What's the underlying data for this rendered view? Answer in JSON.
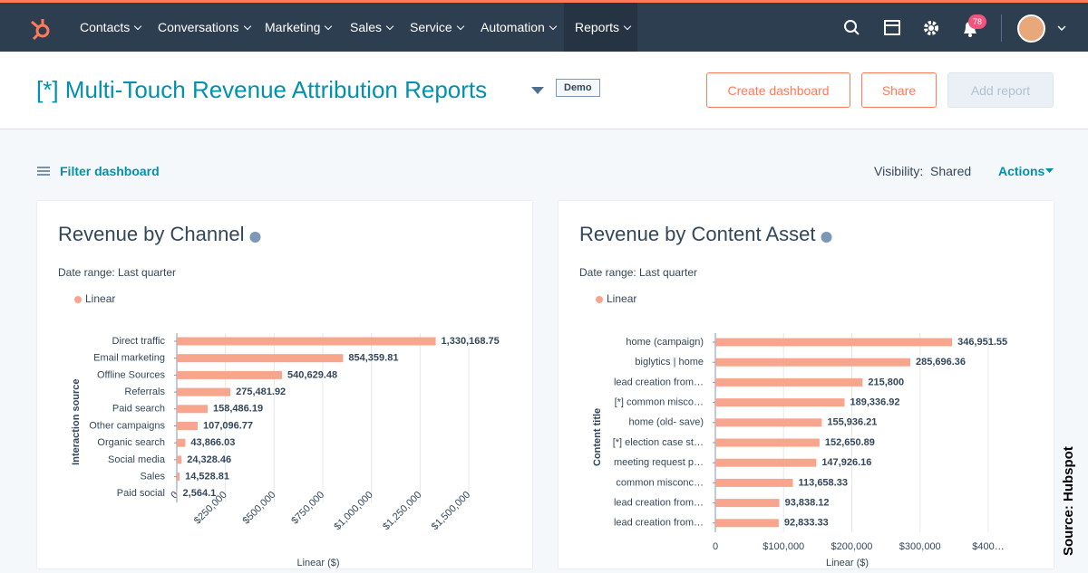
{
  "nav": {
    "items": [
      "Contacts",
      "Conversations",
      "Marketing",
      "Sales",
      "Service",
      "Automation",
      "Reports"
    ],
    "notifications": "78"
  },
  "header": {
    "title": "[*] Multi-Touch Revenue Attribution Reports",
    "badge": "Demo",
    "buttons": [
      "Create dashboard",
      "Share",
      "Add report"
    ]
  },
  "toolbar": {
    "filter": "Filter dashboard",
    "visibility_label": "Visibility:",
    "visibility": "Shared",
    "actions": "Actions"
  },
  "source": "Source: Hubspot",
  "chart_data": [
    {
      "type": "bar",
      "orientation": "horizontal",
      "title": "Revenue by Channel",
      "date_range_label": "Date range:",
      "date_range": "Last quarter",
      "x_label": "Linear ($)",
      "y_label": "Interaction source",
      "tick_rotation": -45,
      "categories": [
        "Direct traffic",
        "Email marketing",
        "Offline Sources",
        "Referrals",
        "Paid search",
        "Other campaigns",
        "Organic search",
        "Social media",
        "Sales",
        "Paid social"
      ],
      "series": [
        {
          "name": "Linear",
          "color": "#f8a58e",
          "values": [
            1330168.75,
            854359.81,
            540629.48,
            275481.92,
            158486.19,
            107096.77,
            43866.03,
            24328.46,
            14528.81,
            2564.1
          ],
          "value_labels": [
            "1,330,168.75",
            "854,359.81",
            "540,629.48",
            "275,481.92",
            "158,486.19",
            "107,096.77",
            "43,866.03",
            "24,328.46",
            "14,528.81",
            "2,564.1"
          ]
        }
      ],
      "xlim": [
        0,
        1500000
      ],
      "xticks": [
        0,
        {
          "value": 250000,
          "label": "$250,000"
        },
        {
          "value": 500000,
          "label": "$500,000"
        },
        {
          "value": 750000,
          "label": "$750,000"
        },
        {
          "value": 1000000,
          "label": "$1,000,000"
        },
        {
          "value": 1250000,
          "label": "$1,250,000"
        },
        {
          "value": 1500000,
          "label": "$1,500,000"
        }
      ],
      "grid": true
    },
    {
      "type": "bar",
      "orientation": "horizontal",
      "title": "Revenue by Content Asset",
      "date_range_label": "Date range:",
      "date_range": "Last quarter",
      "x_label": "Linear ($)",
      "y_label": "Content title",
      "tick_rotation": 0,
      "categories": [
        "home (campaign)",
        "biglytics | home",
        "lead creation from…",
        "[*] common misco…",
        "home (old- save)",
        "[*] election case st…",
        "meeting request p…",
        "common misconc…",
        "lead creation from…",
        "lead creation from…"
      ],
      "series": [
        {
          "name": "Linear",
          "color": "#f8a58e",
          "values": [
            346951.55,
            285696.36,
            215800,
            189336.92,
            155936.21,
            152650.89,
            147926.16,
            113658.33,
            93838.12,
            92833.33
          ],
          "value_labels": [
            "346,951.55",
            "285,696.36",
            "215,800",
            "189,336.92",
            "155,936.21",
            "152,650.89",
            "147,926.16",
            "113,658.33",
            "93,838.12",
            "92,833.33"
          ]
        }
      ],
      "xlim": [
        0,
        400000
      ],
      "xticks": [
        0,
        {
          "value": 100000,
          "label": "$100,000"
        },
        {
          "value": 200000,
          "label": "$200,000"
        },
        {
          "value": 300000,
          "label": "$300,000"
        },
        {
          "value": 400000,
          "label": "$400…"
        }
      ],
      "grid": true
    }
  ]
}
